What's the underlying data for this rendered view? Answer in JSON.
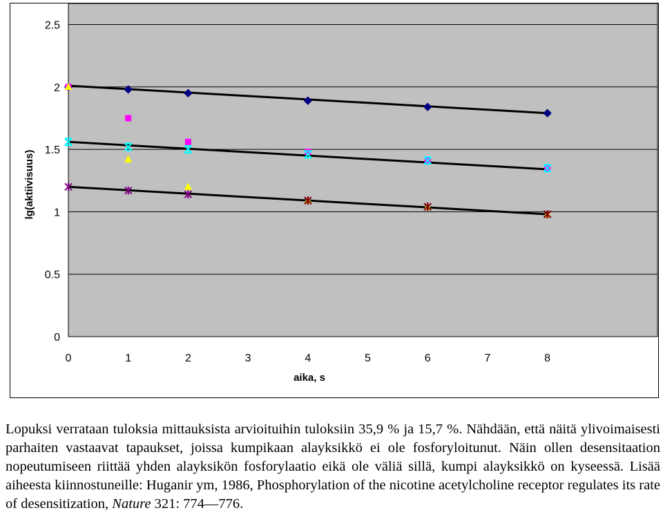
{
  "chart_data": {
    "type": "scatter",
    "title": "",
    "xlabel": "aika, s",
    "ylabel": "lg(aktiivisuus)",
    "xlim": [
      0,
      8
    ],
    "ylim": [
      0,
      2.5
    ],
    "x_ticks": [
      "0",
      "1",
      "2",
      "3",
      "4",
      "5",
      "6",
      "7",
      "8"
    ],
    "y_ticks": [
      "0",
      "0.5",
      "1",
      "1.5",
      "2",
      "2.5"
    ],
    "grid": "horizontal",
    "legend": "none",
    "plot_background": "#c0c0c0",
    "series": [
      {
        "marker": "diamond",
        "color": "#000080",
        "x": [
          0,
          1,
          2,
          4,
          6,
          8
        ],
        "y": [
          2.0,
          1.98,
          1.95,
          1.89,
          1.84,
          1.79
        ]
      },
      {
        "marker": "square",
        "color": "#ff00ff",
        "x": [
          0,
          1,
          2,
          4,
          6,
          8
        ],
        "y": [
          2.0,
          1.75,
          1.56,
          1.48,
          1.41,
          1.35
        ]
      },
      {
        "marker": "triangle",
        "color": "#ffff00",
        "x": [
          0,
          1,
          2,
          4,
          6,
          8
        ],
        "y": [
          2.0,
          1.42,
          1.2,
          1.09,
          1.04,
          0.98
        ]
      },
      {
        "marker": "x",
        "color": "#00ffff",
        "x": [
          0,
          1,
          2,
          4,
          6,
          8
        ],
        "y": [
          1.56,
          1.52,
          1.5,
          1.46,
          1.41,
          1.35
        ]
      },
      {
        "marker": "star",
        "color": "#800080",
        "x": [
          0,
          1,
          2,
          4,
          6,
          8
        ],
        "y": [
          1.2,
          1.17,
          1.14,
          1.09,
          1.04,
          0.98
        ]
      },
      {
        "marker": "star",
        "color": "#800000",
        "x": [
          4,
          6,
          8
        ],
        "y": [
          1.09,
          1.04,
          0.98
        ]
      }
    ],
    "trendlines": [
      {
        "color": "#000000",
        "x": [
          0,
          8
        ],
        "y": [
          2.01,
          1.79
        ]
      },
      {
        "color": "#000000",
        "x": [
          0,
          8
        ],
        "y": [
          1.56,
          1.34
        ]
      },
      {
        "color": "#000000",
        "x": [
          0,
          8
        ],
        "y": [
          1.2,
          0.98
        ]
      }
    ]
  },
  "caption": {
    "text_1": "Lopuksi verrataan tuloksia mittauksista arvioituihin tuloksiin 35,9 % ja 15,7 %. Nähdään, että näitä ylivoimaisesti parhaiten vastaavat tapaukset, joissa kumpikaan alayksikkö ei ole fosforyloitunut. Näin ollen desensitaation nopeutumiseen riittää yhden alayksikön fosforylaatio eikä ole väliä sillä, kumpi alayksikkö on kyseessä. Lisää aiheesta kiinnostuneille: Huganir ym, 1986, Phosphorylation of the nicotine acetylcholine receptor regulates its rate of desensitization, ",
    "journal": "Nature",
    "text_2": " 321: 774—776."
  }
}
